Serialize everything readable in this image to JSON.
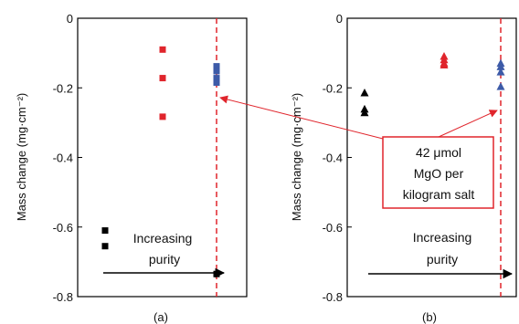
{
  "chart_data": [
    {
      "type": "scatter",
      "panel_label": "(a)",
      "ylabel": "Mass change (mg·cm⁻²)",
      "ylim": [
        -0.8,
        0
      ],
      "yticks": [
        "0",
        "-0.2",
        "-0.4",
        "-0.6",
        "-0.8"
      ],
      "ytick_values": [
        0,
        -0.2,
        -0.4,
        -0.6,
        -0.8
      ],
      "grid": false,
      "series": [
        {
          "marker": "square",
          "color": "#000000",
          "x": [
            1,
            1,
            3
          ],
          "y": [
            -0.61,
            -0.655,
            -0.735
          ]
        },
        {
          "marker": "square",
          "color": "#e0252c",
          "x": [
            2,
            2,
            2
          ],
          "y": [
            -0.09,
            -0.172,
            -0.283
          ]
        },
        {
          "marker": "square",
          "color": "#3d5ba8",
          "x": [
            3,
            3,
            3,
            3
          ],
          "y": [
            -0.138,
            -0.152,
            -0.172,
            -0.185
          ]
        }
      ],
      "annotation": {
        "line1": "Increasing",
        "line2": "purity"
      },
      "dashed_line_color": "#e0252c"
    },
    {
      "type": "scatter",
      "panel_label": "(b)",
      "ylabel": "Mass change (mg·cm⁻²)",
      "ylim": [
        -0.8,
        0
      ],
      "yticks": [
        "0",
        "-0.2",
        "-0.4",
        "-0.6",
        "-0.8"
      ],
      "ytick_values": [
        0,
        -0.2,
        -0.4,
        -0.6,
        -0.8
      ],
      "grid": false,
      "series": [
        {
          "marker": "triangle",
          "color": "#000000",
          "x": [
            1,
            1,
            1
          ],
          "y": [
            -0.215,
            -0.262,
            -0.272
          ]
        },
        {
          "marker": "triangle",
          "color": "#e0252c",
          "x": [
            2,
            2,
            2,
            2
          ],
          "y": [
            -0.11,
            -0.12,
            -0.13,
            -0.135
          ]
        },
        {
          "marker": "triangle",
          "color": "#3d5ba8",
          "x": [
            3,
            3,
            3,
            3
          ],
          "y": [
            -0.13,
            -0.14,
            -0.155,
            -0.197
          ]
        }
      ],
      "annotation": {
        "line1": "Increasing",
        "line2": "purity"
      },
      "dashed_line_color": "#e0252c"
    }
  ],
  "callout": {
    "line1": "42 μmol",
    "line2": "MgO per",
    "line3": "kilogram salt",
    "color": "#e0252c"
  }
}
